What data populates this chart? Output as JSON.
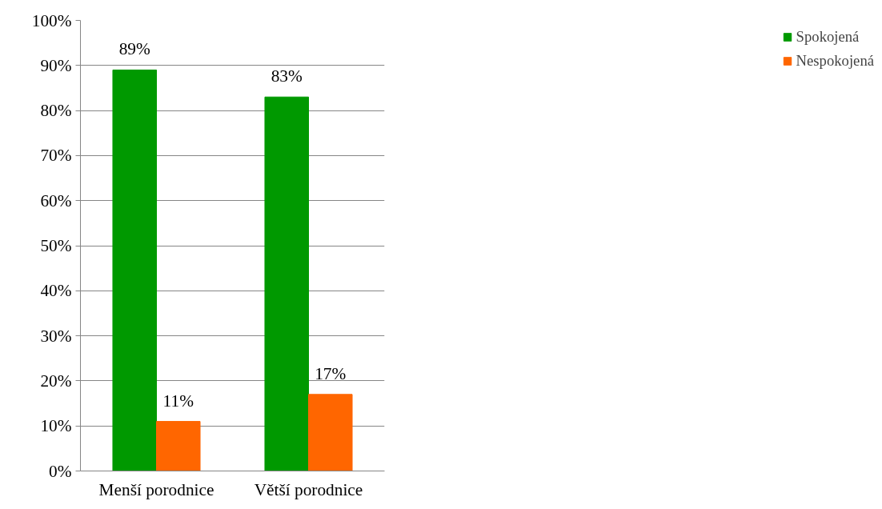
{
  "chart_data": {
    "type": "bar",
    "categories": [
      "Menší porodnice",
      "Větší porodnice"
    ],
    "series": [
      {
        "name": "Spokojená",
        "color": "#009900",
        "values": [
          89,
          83
        ],
        "value_labels": [
          "89%",
          "83%"
        ]
      },
      {
        "name": "Nespokojená",
        "color": "#ff6600",
        "values": [
          11,
          17
        ],
        "value_labels": [
          "11%",
          "17%"
        ]
      }
    ],
    "ylim": [
      0,
      100
    ],
    "yticks": [
      {
        "value": 0,
        "label": "0%"
      },
      {
        "value": 10,
        "label": "10%"
      },
      {
        "value": 20,
        "label": "20%"
      },
      {
        "value": 30,
        "label": "30%"
      },
      {
        "value": 40,
        "label": "40%"
      },
      {
        "value": 50,
        "label": "50%"
      },
      {
        "value": 60,
        "label": "60%"
      },
      {
        "value": 70,
        "label": "70%"
      },
      {
        "value": 80,
        "label": "80%"
      },
      {
        "value": 90,
        "label": "90%"
      },
      {
        "value": 100,
        "label": "100%"
      }
    ],
    "grid": "y",
    "legend": "right"
  }
}
